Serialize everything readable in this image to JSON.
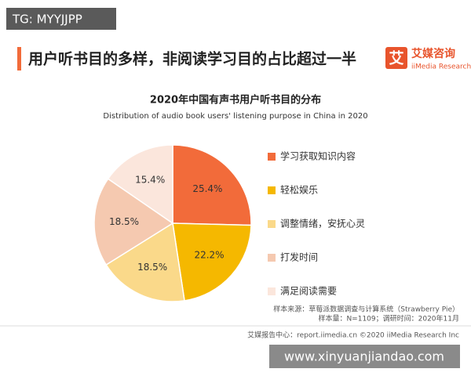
{
  "watermark_top": "TG: MYYJJPP",
  "header": {
    "title": "用户听书目的多样，非阅读学习目的占比超过一半",
    "logo_mark": "艾",
    "logo_name": "艾媒咨询",
    "logo_sub": "iiMedia Research"
  },
  "chart_data": {
    "type": "pie",
    "title": "2020年中国有声书用户听书目的分布",
    "subtitle": "Distribution of audio book users' listening purpose in China in 2020",
    "categories": [
      "学习获取知识内容",
      "轻松娱乐",
      "调整情绪，安抚心灵",
      "打发时间",
      "满足阅读需要"
    ],
    "values": [
      25.4,
      22.2,
      18.5,
      18.5,
      15.4
    ],
    "value_labels": [
      "25.4%",
      "22.2%",
      "18.5%",
      "18.5%",
      "15.4%"
    ],
    "colors": [
      "#f26b3a",
      "#f5b800",
      "#fad98a",
      "#f5c9b0",
      "#fbe6dc"
    ],
    "legend": "right"
  },
  "source": [
    "样本来源：草莓派数据调查与计算系统（Strawberry Pie）",
    "样本量：N=1109；调研时间：2020年11月"
  ],
  "footer": "艾媒报告中心：report.iimedia.cn  ©2020  iiMedia Research  Inc",
  "watermark_bottom": "www.xinyuanjiandao.com"
}
